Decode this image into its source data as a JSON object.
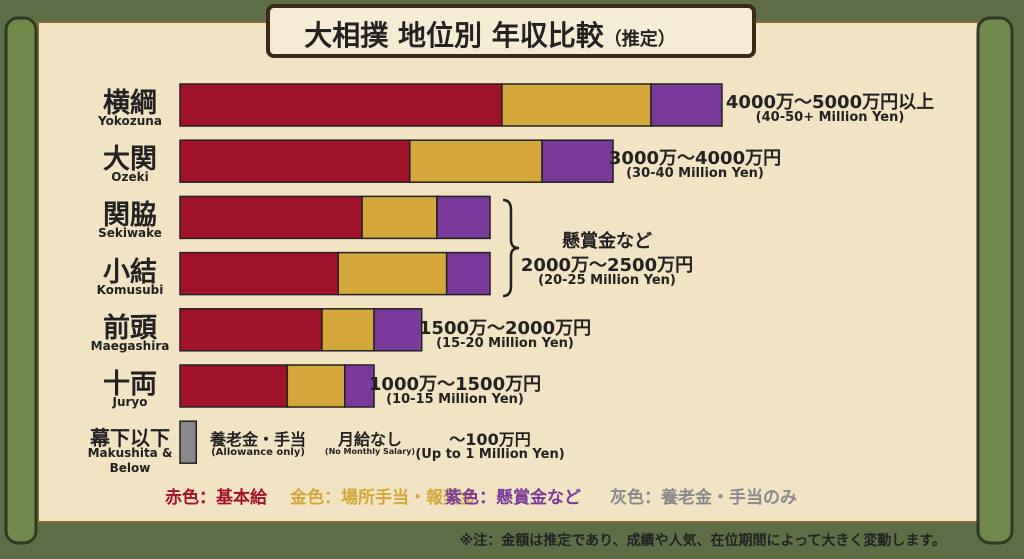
{
  "chart_data": {
    "type": "bar",
    "stacked": true,
    "orientation": "horizontal",
    "title": "大相撲 地位別 年収比較",
    "subtitle": "（推定）",
    "categories": [
      "横綱",
      "大関",
      "関脇",
      "小結",
      "前頭",
      "十両",
      "幕下以下"
    ],
    "categories_en": [
      "Yokozuna",
      "Ozeki",
      "Sekiwake",
      "Komusubi",
      "Maegashira",
      "Juryo",
      "Makushita & Below"
    ],
    "xlim": [
      0,
      5000
    ],
    "series": [
      {
        "name": "赤色：基本給",
        "color": "#a0112a",
        "values": [
          2970,
          2120,
          1680,
          1460,
          1310,
          990,
          null
        ]
      },
      {
        "name": "金色：場所手当・報奨金",
        "color": "#d4a73a",
        "values": [
          1375,
          1220,
          690,
          1000,
          480,
          530,
          null
        ]
      },
      {
        "name": "紫色：懸賞金など",
        "color": "#7a3a9a",
        "values": [
          655,
          655,
          490,
          400,
          440,
          270,
          null
        ]
      },
      {
        "name": "灰色：養老金・手当のみ",
        "color": "#8a8a8a",
        "values": [
          null,
          null,
          null,
          null,
          null,
          null,
          150
        ]
      }
    ],
    "annotations": [
      {
        "text": "4000万～5000万円以上",
        "sub": "(40-50+ Million Yen)"
      },
      {
        "text": "3000万～4000万円",
        "sub": "(30-40 Million Yen)"
      },
      {
        "note": "懸賞金など",
        "text": "2000万～2500万円",
        "sub": "(20-25 Million Yen)"
      },
      {
        "text": "1500万～2000万円",
        "sub": "(15-20 Million Yen)"
      },
      {
        "text": "1000万～1500万円",
        "sub": "(10-15 Million Yen)"
      }
    ],
    "makushita_notes": [
      {
        "text": "養老金・手当",
        "sub": "(Allowance only)"
      },
      {
        "text": "月給なし",
        "sub": "(No Monthly Salary)"
      },
      {
        "text": "～100万円",
        "sub": "(Up to 1 Million Yen)"
      }
    ],
    "footnote": "※注：金額は推定であり、成績や人気、在位期間によって大きく変動します。"
  }
}
